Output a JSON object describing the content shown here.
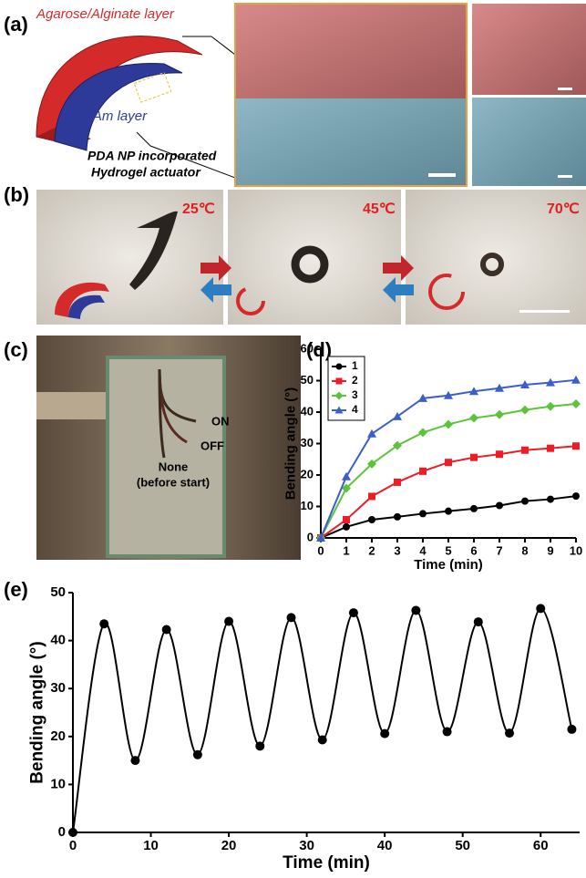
{
  "panel_labels": [
    "(a)",
    "(b)",
    "(c)",
    "(d)",
    "(e)"
  ],
  "panel_a": {
    "top_layer": "Agarose/Alginate layer",
    "bottom_layer": "PNIPAm layer",
    "caption": [
      "PDA NP incorporated",
      "Hydrogel actuator"
    ]
  },
  "panel_b": {
    "temperatures": [
      "25℃",
      "45℃",
      "70℃"
    ]
  },
  "panel_c": {
    "labels": [
      "ON",
      "OFF",
      "None",
      "(before start)"
    ]
  },
  "chart_data": [
    {
      "type": "line",
      "xlabel": "Time (min)",
      "ylabel": "Bending angle (°)",
      "x": [
        0,
        1,
        2,
        3,
        4,
        5,
        6,
        7,
        8,
        9,
        10
      ],
      "xlim": [
        0,
        10
      ],
      "xticks": [
        0,
        1,
        2,
        3,
        4,
        5,
        6,
        7,
        8,
        9,
        10
      ],
      "ylim": [
        0,
        60
      ],
      "yticks": [
        0,
        10,
        20,
        30,
        40,
        50,
        60
      ],
      "legend": "upper left",
      "smooth": false,
      "series": [
        {
          "name": "1",
          "color": "#000000",
          "marker": "circle",
          "values": [
            0,
            3.5,
            5.8,
            6.7,
            7.7,
            8.5,
            9.3,
            10.3,
            11.7,
            12.3,
            13.3
          ]
        },
        {
          "name": "2",
          "color": "#ee1c24",
          "marker": "square",
          "values": [
            0,
            5.8,
            13.2,
            17.7,
            21.2,
            24,
            25.6,
            26.6,
            27.9,
            28.5,
            29.2
          ]
        },
        {
          "name": "3",
          "color": "#5cc43a",
          "marker": "diamond",
          "values": [
            0,
            15.8,
            23.5,
            29.4,
            33.5,
            36.1,
            38.1,
            39.2,
            40.7,
            41.8,
            42.6
          ]
        },
        {
          "name": "4",
          "color": "#3a5fcd",
          "marker": "triangle",
          "values": [
            0,
            19.5,
            33.1,
            38.6,
            44.4,
            45.3,
            46.6,
            47.6,
            48.7,
            49.4,
            50.2
          ]
        }
      ]
    },
    {
      "type": "line",
      "xlabel": "Time (min)",
      "ylabel": "Bending angle (°)",
      "x": [
        0,
        4,
        8,
        12,
        16,
        20,
        24,
        28,
        32,
        36,
        40,
        44,
        48,
        52,
        56,
        60,
        64
      ],
      "xlim": [
        0,
        65
      ],
      "xticks": [
        0,
        10,
        20,
        30,
        40,
        50,
        60
      ],
      "ylim": [
        0,
        50
      ],
      "yticks": [
        0,
        10,
        20,
        30,
        40,
        50
      ],
      "smooth": true,
      "series": [
        {
          "color": "#000000",
          "marker": "circle",
          "values": [
            0,
            43.5,
            15,
            42.3,
            16.2,
            44,
            18,
            44.8,
            19.3,
            45.8,
            20.6,
            46.3,
            21,
            43.9,
            20.7,
            46.7,
            21.5
          ]
        }
      ]
    }
  ]
}
